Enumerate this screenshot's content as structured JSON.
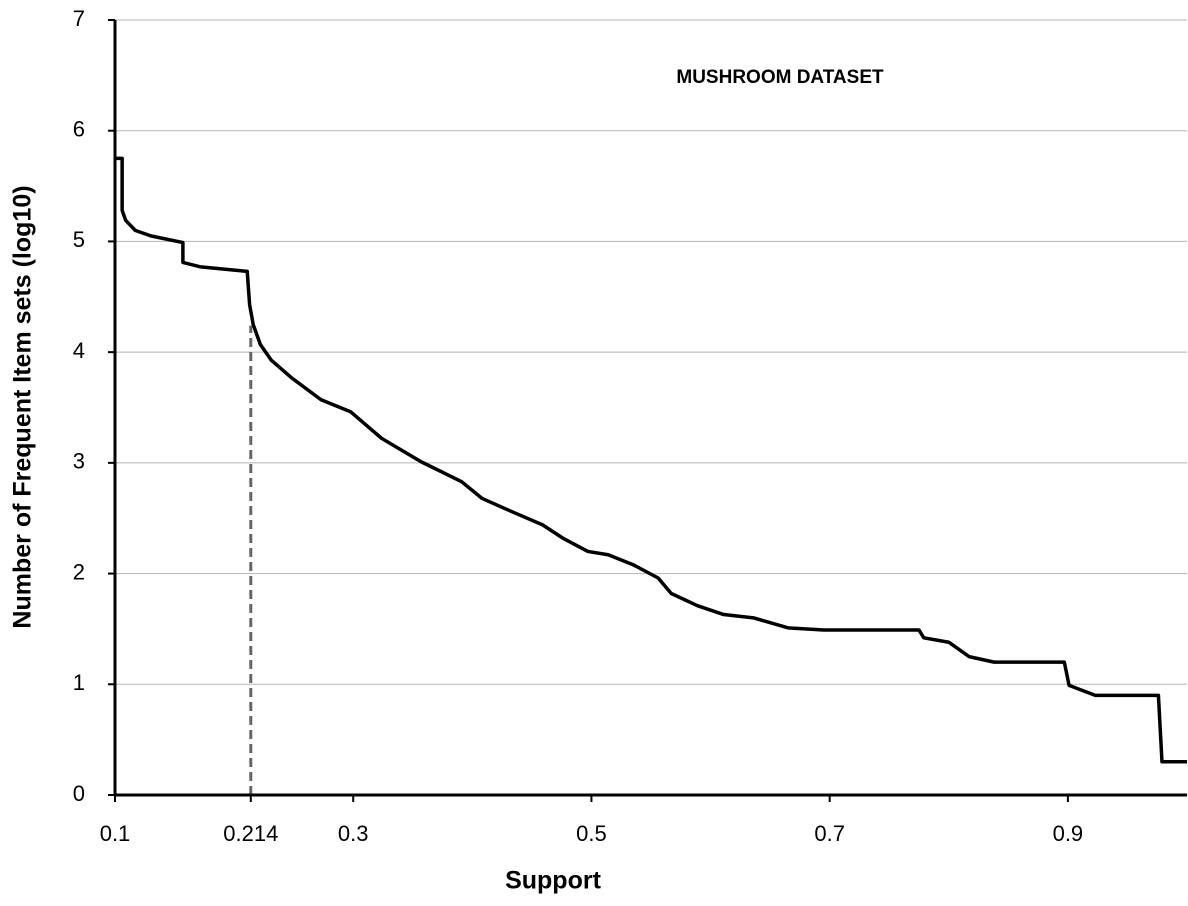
{
  "chart_data": {
    "type": "line",
    "title": "MUSHROOM DATASET",
    "x_label": "Support",
    "y_label": "Number of Frequent Item sets (log10)",
    "x": [
      0.1,
      0.106,
      0.106,
      0.109,
      0.117,
      0.13,
      0.157,
      0.157,
      0.172,
      0.211,
      0.213,
      0.216,
      0.222,
      0.231,
      0.248,
      0.273,
      0.298,
      0.324,
      0.357,
      0.391,
      0.408,
      0.433,
      0.459,
      0.476,
      0.497,
      0.514,
      0.535,
      0.556,
      0.567,
      0.589,
      0.611,
      0.636,
      0.665,
      0.695,
      0.775,
      0.779,
      0.8,
      0.817,
      0.838,
      0.897,
      0.901,
      0.923,
      0.976,
      0.979,
      1.0
    ],
    "series": [
      {
        "color": "#000000",
        "values": [
          5.75,
          5.75,
          5.28,
          5.19,
          5.1,
          5.05,
          4.99,
          4.81,
          4.77,
          4.73,
          4.43,
          4.25,
          4.07,
          3.93,
          3.77,
          3.57,
          3.46,
          3.22,
          3.01,
          2.83,
          2.68,
          2.56,
          2.44,
          2.32,
          2.2,
          2.17,
          2.08,
          1.96,
          1.82,
          1.71,
          1.63,
          1.6,
          1.51,
          1.49,
          1.49,
          1.42,
          1.38,
          1.25,
          1.2,
          1.2,
          0.99,
          0.9,
          0.9,
          0.3,
          0.3
        ]
      }
    ],
    "marker": {
      "x": 0.214,
      "y": 4.24,
      "color": "#666666"
    },
    "xlim": [
      0.1,
      1.0
    ],
    "xticks": [
      0.1,
      0.214,
      0.3,
      0.5,
      0.7,
      0.9
    ],
    "ylim": [
      0,
      7
    ],
    "yticks": [
      0,
      1,
      2,
      3,
      4,
      5,
      6,
      7
    ],
    "grid": true
  }
}
